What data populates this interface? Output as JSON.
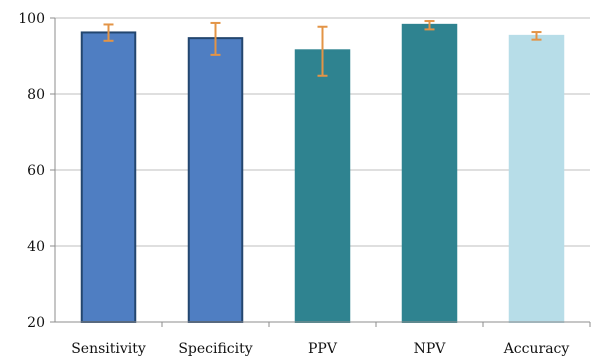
{
  "chart_data": {
    "type": "bar",
    "title": "",
    "xlabel": "",
    "ylabel": "",
    "ylim": [
      20,
      100
    ],
    "yticks": [
      20,
      40,
      60,
      80,
      100
    ],
    "grid": true,
    "categories": [
      "Sensitivity",
      "Specificity",
      "PPV",
      "NPV",
      "Accuracy"
    ],
    "values": [
      96.2,
      94.7,
      91.5,
      98.2,
      95.3
    ],
    "error_low": [
      94.0,
      90.3,
      84.8,
      97.0,
      94.3
    ],
    "error_high": [
      98.3,
      98.7,
      97.7,
      99.2,
      96.3
    ],
    "colors": {
      "bars": [
        "#4f7ec2",
        "#4f7ec2",
        "#2f8390",
        "#2f8390",
        "#b7dde8"
      ],
      "bar_borders": [
        "#23466f",
        "#23466f",
        "#2f8390",
        "#2f8390",
        "#b7dde8"
      ],
      "error_bars": "#e39446",
      "gridlines": "#bfbfbf",
      "axis": "#8c8c8c"
    }
  }
}
